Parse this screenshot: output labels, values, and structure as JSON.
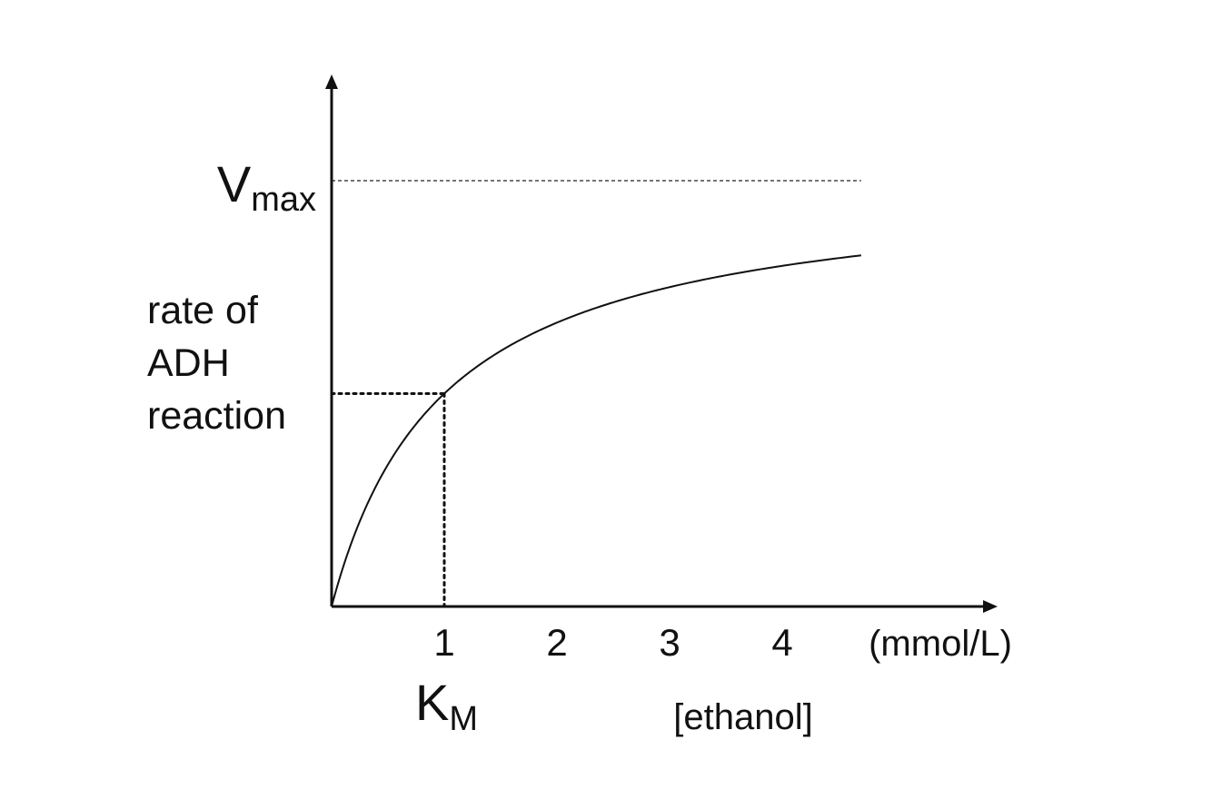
{
  "chart_data": {
    "type": "line",
    "title": "",
    "xlabel": "[ethanol]",
    "x_unit_label": "(mmol/L)",
    "ylabel_lines": [
      "rate of",
      "ADH",
      "reaction"
    ],
    "x_ticks": [
      1,
      2,
      3,
      4
    ],
    "x_tick_labels": [
      "1",
      "2",
      "3",
      "4"
    ],
    "xlim": [
      0,
      4.7
    ],
    "ylim": [
      0,
      1.2
    ],
    "grid": false,
    "vmax": {
      "main": "V",
      "sub": "max",
      "value": 1
    },
    "km": {
      "main": "K",
      "sub": "M",
      "value": 1
    },
    "series": [
      {
        "curve": "michaelis-menten",
        "vmax": 1,
        "km": 1,
        "x": [
          0,
          0.05,
          0.1,
          0.25,
          0.5,
          0.75,
          1,
          1.5,
          2,
          2.5,
          3,
          3.5,
          4,
          4.7
        ],
        "y": [
          0,
          0.048,
          0.091,
          0.2,
          0.333,
          0.429,
          0.5,
          0.6,
          0.667,
          0.714,
          0.75,
          0.778,
          0.8,
          0.825
        ]
      }
    ],
    "annotations": [
      {
        "type": "horizontal-dashed-line",
        "y": 1,
        "meaning": "Vmax"
      },
      {
        "type": "dotted-guides",
        "x": 1,
        "y": 0.5,
        "meaning": "Km at half Vmax"
      }
    ]
  }
}
